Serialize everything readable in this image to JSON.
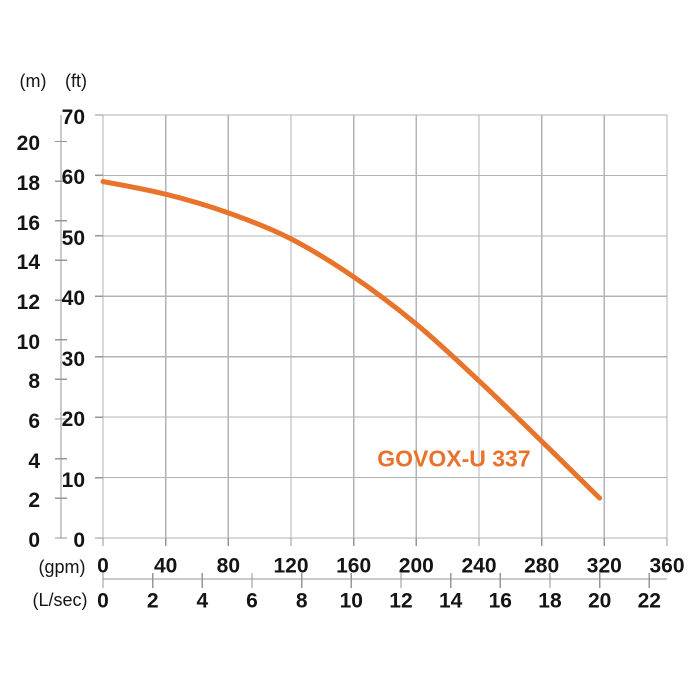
{
  "chart_data": {
    "type": "line",
    "title": "GOVOX-U 337",
    "grid": true,
    "series": [
      {
        "name": "GOVOX-U 337",
        "color": "#e8742b",
        "points_gpm_ft": [
          [
            0,
            59.0
          ],
          [
            40,
            56.9
          ],
          [
            80,
            53.8
          ],
          [
            120,
            49.5
          ],
          [
            160,
            43.2
          ],
          [
            200,
            35.4
          ],
          [
            240,
            26.0
          ],
          [
            280,
            16.0
          ],
          [
            317,
            6.6
          ]
        ]
      }
    ],
    "x_axes": [
      {
        "unit": "(gpm)",
        "ticks": [
          0,
          40,
          80,
          120,
          160,
          200,
          240,
          280,
          320,
          360
        ],
        "range": [
          0,
          360
        ]
      },
      {
        "unit": "(L/sec)",
        "ticks": [
          0,
          2,
          4,
          6,
          8,
          10,
          12,
          14,
          16,
          18,
          20,
          22
        ],
        "gpm_per_unit": 15.8503
      }
    ],
    "y_axes": [
      {
        "unit": "(ft)",
        "ticks": [
          0,
          10,
          20,
          30,
          40,
          50,
          60,
          70
        ],
        "range": [
          0,
          70
        ]
      },
      {
        "unit": "(m)",
        "ticks": [
          0,
          2,
          4,
          6,
          8,
          10,
          12,
          14,
          16,
          18,
          20
        ],
        "ft_per_unit": 3.28084
      }
    ],
    "annotation": {
      "text": "GOVOX-U 337",
      "at_gpm": 224,
      "at_ft": 13
    }
  },
  "labels": {
    "y_secondary_unit": "(m)",
    "y_primary_unit": "(ft)",
    "x_primary_unit": "(gpm)",
    "x_secondary_unit": "(L/sec)",
    "series_label": "GOVOX-U 337"
  },
  "colors": {
    "curve": "#e8742b",
    "annotation": "#e8722c",
    "grid": "#b3b3b7",
    "axis": "#96969a",
    "text": "#141414",
    "background": "#ffffff"
  }
}
